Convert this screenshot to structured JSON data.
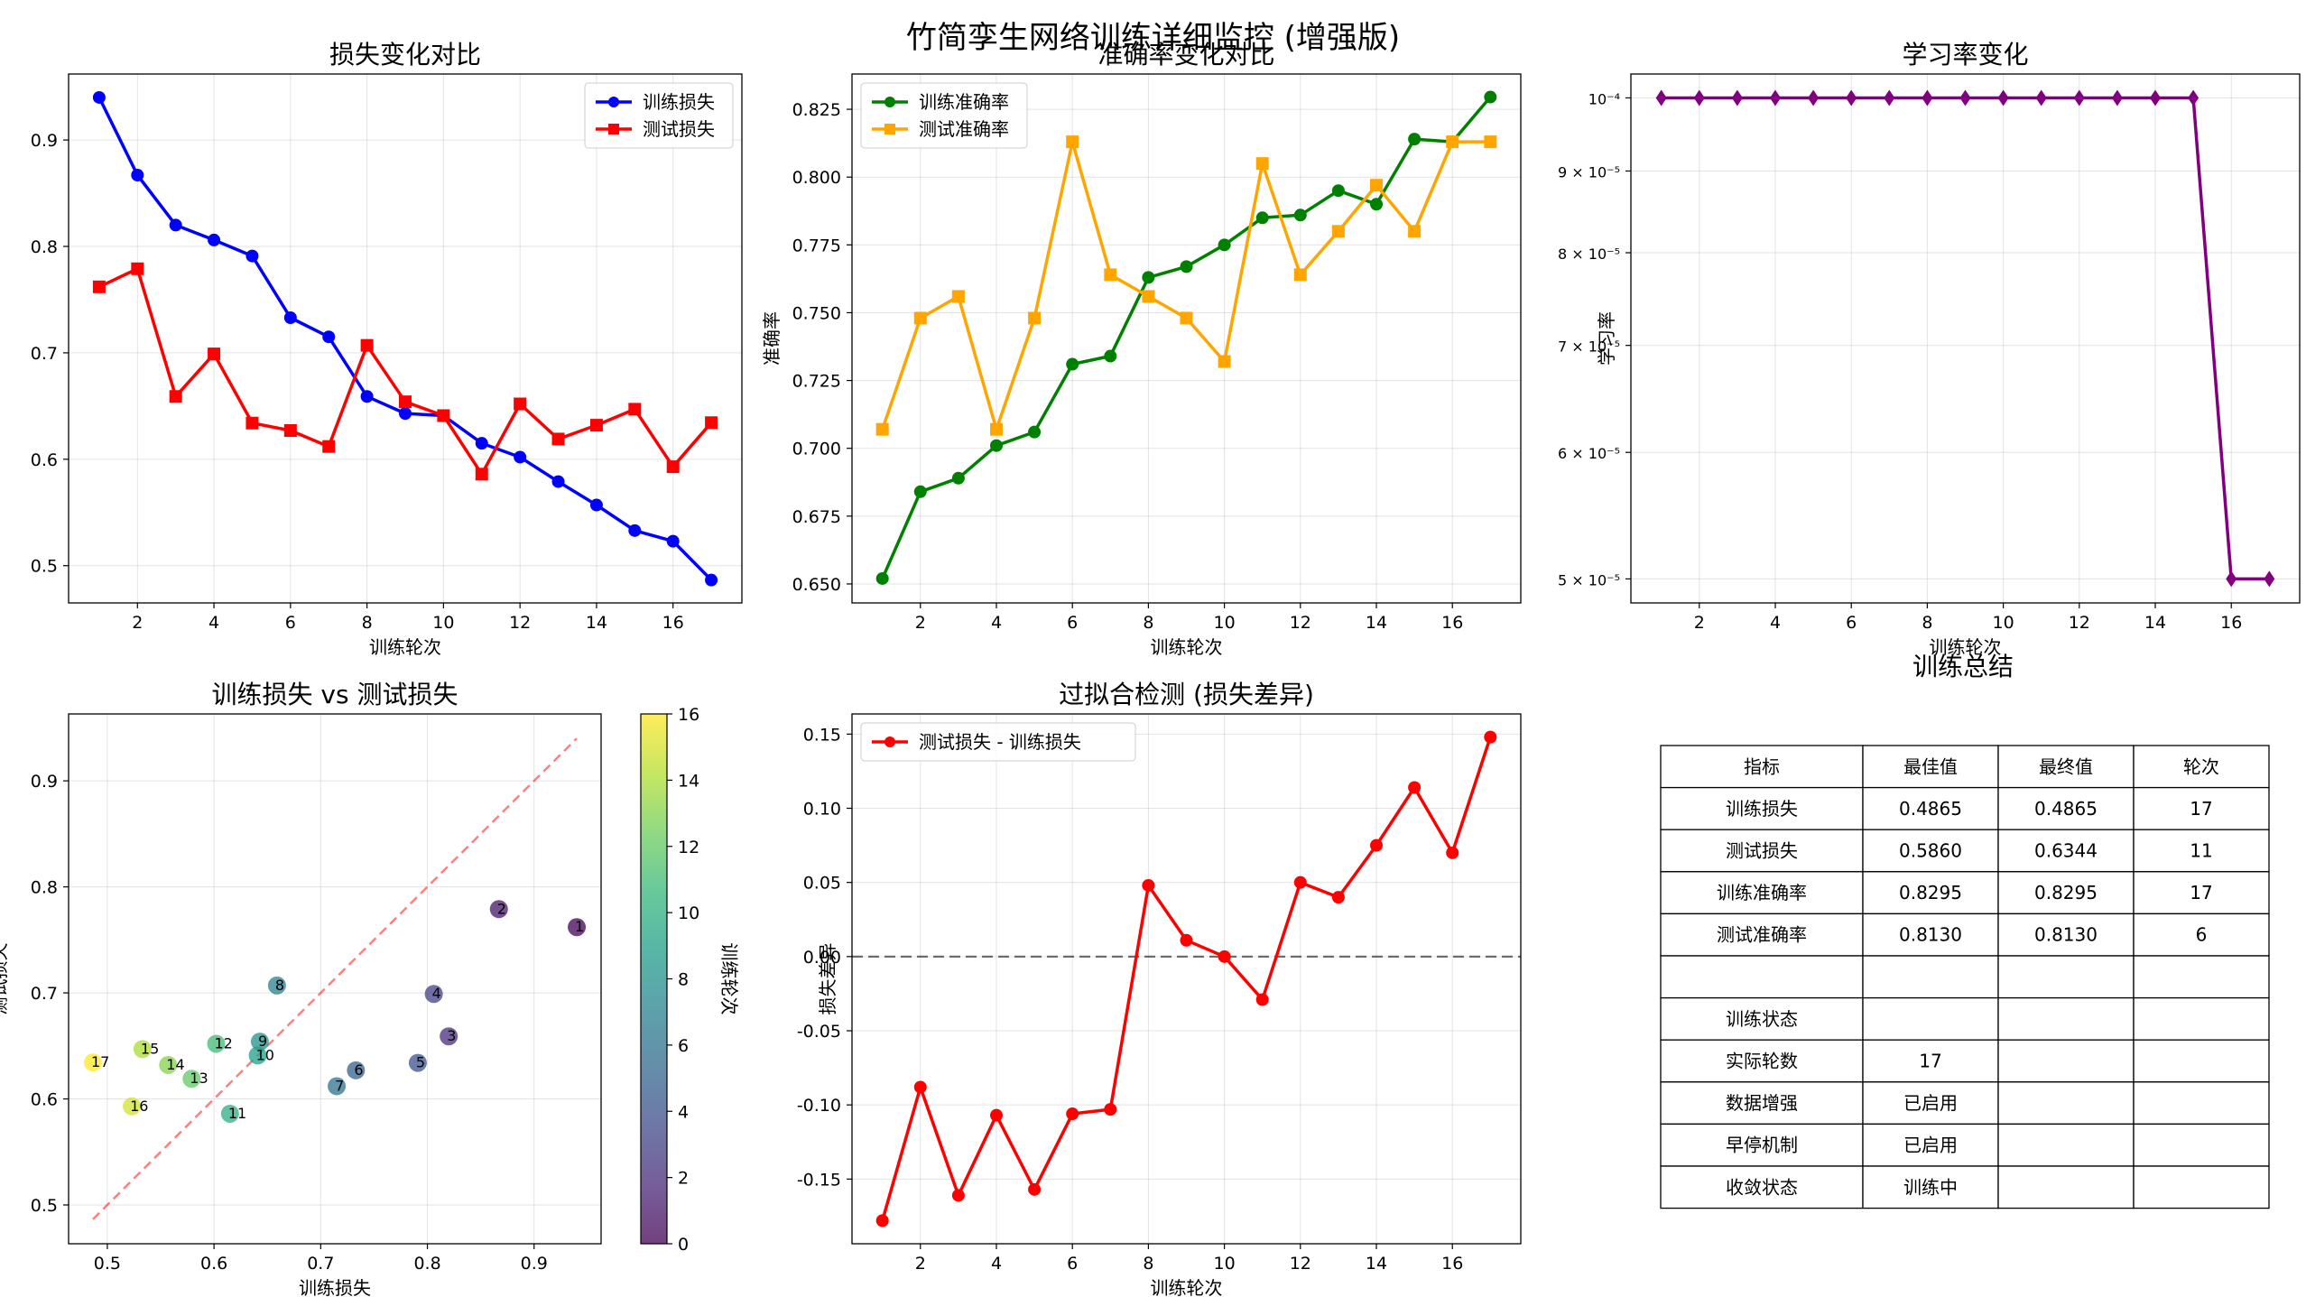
{
  "suptitle": "竹简孪生网络训练详细监控 (增强版)",
  "chart_data": [
    {
      "type": "line",
      "title": "损失变化对比",
      "xlabel": "训练轮次",
      "ylabel": "损失值",
      "xlim": [
        0.2,
        17.8
      ],
      "ylim": [
        0.465,
        0.962
      ],
      "x_ticks": [
        2,
        4,
        6,
        8,
        10,
        12,
        14,
        16
      ],
      "y_ticks": [
        0.5,
        0.6,
        0.7,
        0.8,
        0.9
      ],
      "grid": true,
      "legend": "upper right",
      "x": [
        1,
        2,
        3,
        4,
        5,
        6,
        7,
        8,
        9,
        10,
        11,
        12,
        13,
        14,
        15,
        16,
        17
      ],
      "series": [
        {
          "name": "训练损失",
          "color": "#0000ff",
          "marker": "circle",
          "values": [
            0.94,
            0.867,
            0.82,
            0.806,
            0.791,
            0.733,
            0.715,
            0.659,
            0.643,
            0.641,
            0.615,
            0.602,
            0.579,
            0.557,
            0.533,
            0.523,
            0.4865
          ]
        },
        {
          "name": "测试损失",
          "color": "#ff0000",
          "marker": "square",
          "values": [
            0.762,
            0.779,
            0.659,
            0.699,
            0.634,
            0.627,
            0.612,
            0.707,
            0.654,
            0.641,
            0.586,
            0.652,
            0.619,
            0.632,
            0.647,
            0.593,
            0.6344
          ]
        }
      ]
    },
    {
      "type": "line",
      "title": "准确率变化对比",
      "xlabel": "训练轮次",
      "ylabel": "准确率",
      "xlim": [
        0.2,
        17.8
      ],
      "ylim": [
        0.643,
        0.838
      ],
      "x_ticks": [
        2,
        4,
        6,
        8,
        10,
        12,
        14,
        16
      ],
      "y_ticks": [
        0.65,
        0.675,
        0.7,
        0.725,
        0.75,
        0.775,
        0.8,
        0.825
      ],
      "grid": true,
      "legend": "upper left",
      "x": [
        1,
        2,
        3,
        4,
        5,
        6,
        7,
        8,
        9,
        10,
        11,
        12,
        13,
        14,
        15,
        16,
        17
      ],
      "series": [
        {
          "name": "训练准确率",
          "color": "#008000",
          "marker": "circle",
          "values": [
            0.652,
            0.684,
            0.689,
            0.701,
            0.706,
            0.731,
            0.734,
            0.763,
            0.767,
            0.775,
            0.785,
            0.786,
            0.795,
            0.79,
            0.814,
            0.813,
            0.8295
          ]
        },
        {
          "name": "测试准确率",
          "color": "#ffa500",
          "marker": "square",
          "values": [
            0.707,
            0.748,
            0.756,
            0.707,
            0.748,
            0.813,
            0.764,
            0.756,
            0.748,
            0.732,
            0.805,
            0.764,
            0.78,
            0.797,
            0.78,
            0.813,
            0.813
          ]
        }
      ]
    },
    {
      "type": "line",
      "title": "学习率变化",
      "xlabel": "训练轮次",
      "ylabel": "学习率",
      "log_y": true,
      "xlim": [
        0.2,
        17.8
      ],
      "ylim": [
        4.83e-05,
        0.0001035
      ],
      "x_ticks": [
        2,
        4,
        6,
        8,
        10,
        12,
        14,
        16
      ],
      "y_ticks": [
        {
          "value": 0.0001,
          "label": "10⁻⁴"
        },
        {
          "value": 9e-05,
          "label": "9 × 10⁻⁵"
        },
        {
          "value": 8e-05,
          "label": "8 × 10⁻⁵"
        },
        {
          "value": 7e-05,
          "label": "7 × 10⁻⁵"
        },
        {
          "value": 6e-05,
          "label": "6 × 10⁻⁵"
        },
        {
          "value": 5e-05,
          "label": "5 × 10⁻⁵"
        }
      ],
      "grid": true,
      "x": [
        1,
        2,
        3,
        4,
        5,
        6,
        7,
        8,
        9,
        10,
        11,
        12,
        13,
        14,
        15,
        16,
        17
      ],
      "series": [
        {
          "color": "#800080",
          "marker": "diamond",
          "values": [
            0.0001,
            0.0001,
            0.0001,
            0.0001,
            0.0001,
            0.0001,
            0.0001,
            0.0001,
            0.0001,
            0.0001,
            0.0001,
            0.0001,
            0.0001,
            0.0001,
            0.0001,
            5e-05,
            5e-05
          ]
        }
      ]
    },
    {
      "type": "scatter",
      "title": "训练损失 vs 测试损失",
      "xlabel": "训练损失",
      "ylabel": "测试损失",
      "xlim": [
        0.4637,
        0.9628
      ],
      "ylim": [
        0.4634,
        0.9631
      ],
      "x_ticks": [
        0.5,
        0.6,
        0.7,
        0.8,
        0.9
      ],
      "y_ticks": [
        0.5,
        0.6,
        0.7,
        0.8,
        0.9
      ],
      "grid": true,
      "colormap": "viridis",
      "colorbar_label": "训练轮次",
      "colorbar_range": [
        0,
        16
      ],
      "colorbar_ticks": [
        0,
        2,
        4,
        6,
        8,
        10,
        12,
        14,
        16
      ],
      "diagonal": [
        0.4865,
        0.94
      ],
      "x": [
        0.94,
        0.867,
        0.82,
        0.806,
        0.791,
        0.733,
        0.715,
        0.659,
        0.643,
        0.641,
        0.615,
        0.602,
        0.579,
        0.557,
        0.533,
        0.523,
        0.4865
      ],
      "y": [
        0.762,
        0.779,
        0.659,
        0.699,
        0.634,
        0.627,
        0.612,
        0.707,
        0.654,
        0.641,
        0.586,
        0.652,
        0.619,
        0.632,
        0.647,
        0.593,
        0.6344
      ],
      "point_labels": [
        "1",
        "2",
        "3",
        "4",
        "5",
        "6",
        "7",
        "8",
        "9",
        "10",
        "11",
        "12",
        "13",
        "14",
        "15",
        "16",
        "17"
      ]
    },
    {
      "type": "line",
      "title": "过拟合检测 (损失差异)",
      "xlabel": "训练轮次",
      "ylabel": "损失差异",
      "xlim": [
        0.2,
        17.8
      ],
      "ylim": [
        -0.1936,
        0.1636
      ],
      "x_ticks": [
        2,
        4,
        6,
        8,
        10,
        12,
        14,
        16
      ],
      "y_ticks": [
        -0.15,
        -0.1,
        -0.05,
        0.0,
        0.05,
        0.1,
        0.15
      ],
      "grid": true,
      "legend": "upper left",
      "reference_line": 0,
      "x": [
        1,
        2,
        3,
        4,
        5,
        6,
        7,
        8,
        9,
        10,
        11,
        12,
        13,
        14,
        15,
        16,
        17
      ],
      "series": [
        {
          "name": "测试损失 - 训练损失",
          "color": "#ff0000",
          "marker": "circle",
          "values": [
            -0.178,
            -0.088,
            -0.161,
            -0.107,
            -0.157,
            -0.106,
            -0.103,
            0.048,
            0.011,
            0.0,
            -0.029,
            0.05,
            0.04,
            0.075,
            0.114,
            0.07,
            0.148
          ]
        }
      ]
    },
    {
      "type": "table",
      "title": "训练总结",
      "header": [
        "指标",
        "最佳值",
        "最终值",
        "轮次"
      ],
      "rows": [
        [
          "训练损失",
          "0.4865",
          "0.4865",
          "17"
        ],
        [
          "测试损失",
          "0.5860",
          "0.6344",
          "11"
        ],
        [
          "训练准确率",
          "0.8295",
          "0.8295",
          "17"
        ],
        [
          "测试准确率",
          "0.8130",
          "0.8130",
          "6"
        ],
        [
          "",
          "",
          "",
          ""
        ],
        [
          "训练状态",
          "",
          "",
          ""
        ],
        [
          "实际轮数",
          "17",
          "",
          ""
        ],
        [
          "数据增强",
          "已启用",
          "",
          ""
        ],
        [
          "早停机制",
          "已启用",
          "",
          ""
        ],
        [
          "收敛状态",
          "训练中",
          "",
          ""
        ]
      ]
    }
  ]
}
